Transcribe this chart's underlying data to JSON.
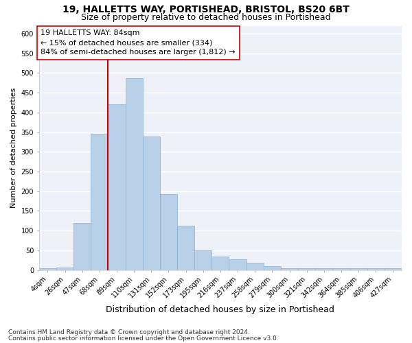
{
  "title_line1": "19, HALLETTS WAY, PORTISHEAD, BRISTOL, BS20 6BT",
  "title_line2": "Size of property relative to detached houses in Portishead",
  "xlabel": "Distribution of detached houses by size in Portishead",
  "ylabel": "Number of detached properties",
  "categories": [
    "4sqm",
    "26sqm",
    "47sqm",
    "68sqm",
    "89sqm",
    "110sqm",
    "131sqm",
    "152sqm",
    "173sqm",
    "195sqm",
    "216sqm",
    "237sqm",
    "258sqm",
    "279sqm",
    "300sqm",
    "321sqm",
    "342sqm",
    "364sqm",
    "385sqm",
    "406sqm",
    "427sqm"
  ],
  "values": [
    5,
    6,
    120,
    345,
    420,
    487,
    338,
    193,
    112,
    49,
    35,
    27,
    18,
    10,
    4,
    5,
    5,
    5,
    5,
    5,
    5
  ],
  "bar_color": "#b8cfe8",
  "bar_edge_color": "#8aafd4",
  "vline_x_index": 4,
  "vline_color": "#cc0000",
  "annotation_text": "19 HALLETTS WAY: 84sqm\n← 15% of detached houses are smaller (334)\n84% of semi-detached houses are larger (1,812) →",
  "annotation_box_color": "#ffffff",
  "annotation_box_edge": "#cc0000",
  "ylim": [
    0,
    620
  ],
  "yticks": [
    0,
    50,
    100,
    150,
    200,
    250,
    300,
    350,
    400,
    450,
    500,
    550,
    600
  ],
  "bg_color": "#eef2f8",
  "grid_color": "#ffffff",
  "footer_line1": "Contains HM Land Registry data © Crown copyright and database right 2024.",
  "footer_line2": "Contains public sector information licensed under the Open Government Licence v3.0.",
  "title1_fontsize": 10,
  "title2_fontsize": 9,
  "xlabel_fontsize": 9,
  "ylabel_fontsize": 8,
  "tick_fontsize": 7,
  "annotation_fontsize": 8,
  "footer_fontsize": 6.5
}
